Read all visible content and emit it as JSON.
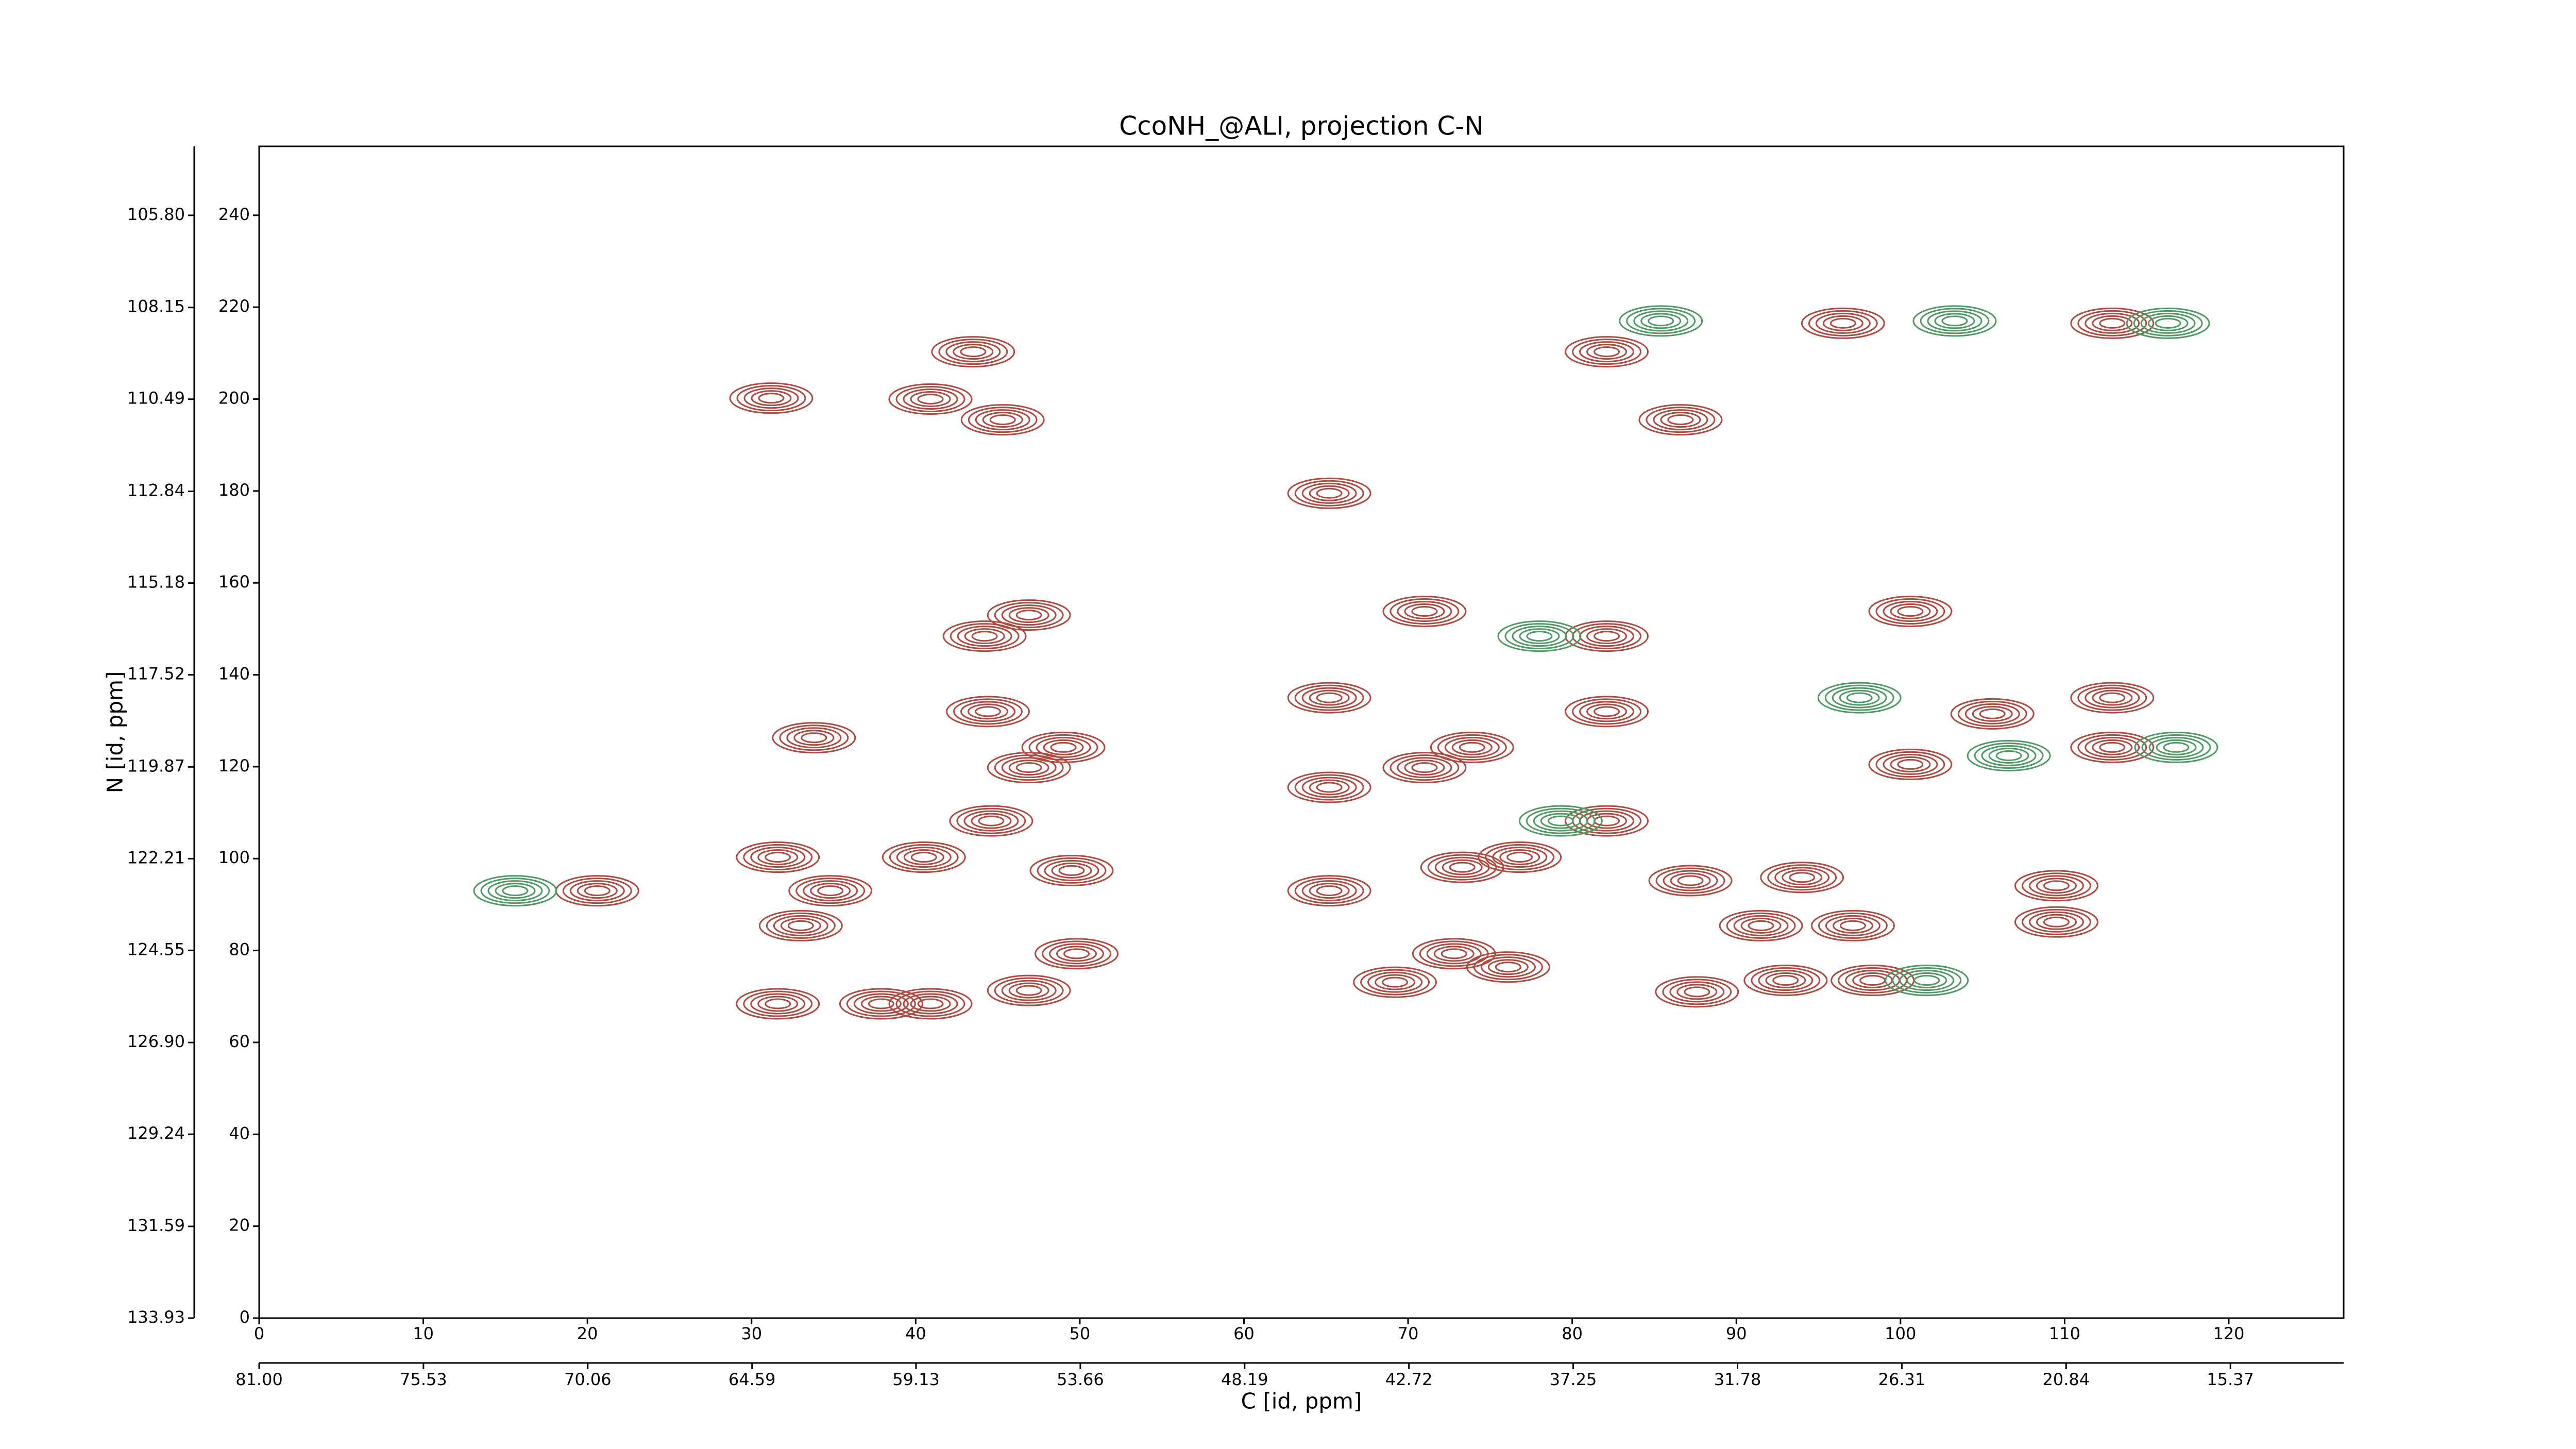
{
  "chart_data": {
    "type": "contour",
    "title": "CcoNH_@ALI, projection C-N",
    "x_label": "C [id, ppm]",
    "y_label": "N [id, ppm]",
    "xlim": [
      0,
      127
    ],
    "ylim": [
      0,
      255
    ],
    "xticks": [
      0,
      10,
      20,
      30,
      40,
      50,
      60,
      70,
      80,
      90,
      100,
      110,
      120
    ],
    "yticks": [
      0,
      20,
      40,
      60,
      80,
      100,
      120,
      140,
      160,
      180,
      200,
      220,
      240
    ],
    "x2lim": [
      81,
      11.6
    ],
    "x2ticks": [
      {
        "value": 81,
        "label": "81.00"
      },
      75.53,
      70.06,
      64.59,
      59.13,
      53.66,
      48.19,
      42.72,
      37.25,
      31.78,
      26.31,
      20.84,
      15.37
    ],
    "y2lim": [
      133.93,
      104.04
    ],
    "y2ticks": [
      133.93,
      131.59,
      129.24,
      {
        "value": 126.9,
        "label": "126.90"
      },
      124.55,
      122.21,
      119.87,
      117.52,
      115.18,
      112.84,
      110.49,
      108.15,
      {
        "value": 105.8,
        "label": "105.80"
      }
    ],
    "series": [
      {
        "color": "#b0493f",
        "x": [
          31.2,
          40.9,
          45.3,
          43.5,
          82.1,
          86.6,
          65.2,
          112.9,
          96.5,
          44.2,
          46.9,
          71,
          82.1,
          100.6,
          65.2,
          44.4,
          82.1,
          33.8,
          49,
          46.9,
          73.9,
          71,
          65.2,
          112.9,
          112.9,
          105.6,
          100.6,
          82.1,
          44.6,
          31.6,
          40.5,
          73.3,
          76.8,
          20.6,
          34.8,
          49.5,
          65.2,
          87.2,
          94,
          109.5,
          33,
          91.5,
          97.1,
          109.5,
          49.8,
          72.8,
          76.1,
          69.2,
          46.9,
          31.6,
          40.9,
          37.9,
          87.6,
          93,
          98.3
        ],
        "y": [
          200.2,
          200,
          195.5,
          210.3,
          210.3,
          195.5,
          179.5,
          216.5,
          216.5,
          148.4,
          153,
          153.8,
          148.4,
          153.8,
          135,
          132,
          132,
          126.3,
          124.2,
          119.8,
          124.2,
          119.8,
          115.5,
          135,
          124.2,
          131.5,
          120.5,
          108.2,
          108.2,
          100.3,
          100.3,
          98.1,
          100.3,
          93,
          93,
          97.4,
          93,
          95.2,
          95.9,
          94.1,
          85.4,
          85.4,
          85.4,
          86.2,
          79.3,
          79.3,
          76.4,
          73.1,
          71.3,
          68.4,
          68.4,
          68.4,
          71,
          73.5,
          73.5
        ]
      },
      {
        "color": "#4f9a63",
        "x": [
          15.6,
          85.4,
          103.3,
          116.3,
          78,
          97.5,
          106.6,
          116.8,
          79.3,
          101.6
        ],
        "y": [
          93,
          217,
          217,
          216.5,
          148.4,
          135,
          122.4,
          124.2,
          108.2,
          73.5
        ]
      }
    ]
  }
}
